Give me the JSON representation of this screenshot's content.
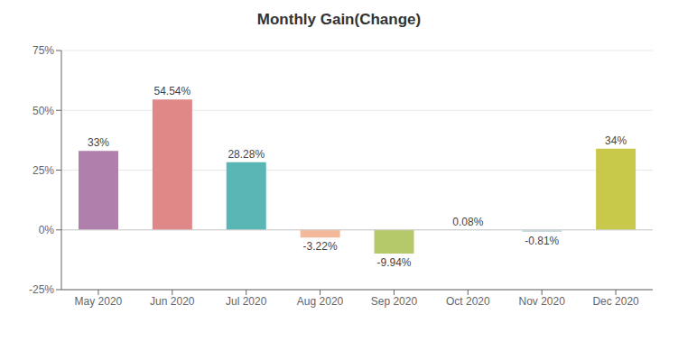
{
  "chart_data": {
    "type": "bar",
    "title": "Monthly Gain(Change)",
    "categories": [
      "May 2020",
      "Jun 2020",
      "Jul 2020",
      "Aug 2020",
      "Sep 2020",
      "Oct 2020",
      "Nov 2020",
      "Dec 2020"
    ],
    "values": [
      33.0,
      54.54,
      28.28,
      -3.22,
      -9.94,
      0.08,
      -0.81,
      34.0
    ],
    "value_labels": [
      "33%",
      "54.54%",
      "28.28%",
      "-3.22%",
      "-9.94%",
      "0.08%",
      "-0.81%",
      "34%"
    ],
    "colors": [
      "#b07fac",
      "#e08888",
      "#5ab5b5",
      "#f4b89a",
      "#b5c96a",
      "#c8e8e0",
      "#c8dce0",
      "#c8c84a"
    ],
    "ylim": [
      -25,
      75
    ],
    "yticks": [
      {
        "value": -25,
        "label": "-25%"
      },
      {
        "value": 0,
        "label": "0%"
      },
      {
        "value": 25,
        "label": "25%"
      },
      {
        "value": 50,
        "label": "50%"
      },
      {
        "value": 75,
        "label": "75%"
      }
    ],
    "grid": true,
    "data_labels": true
  }
}
